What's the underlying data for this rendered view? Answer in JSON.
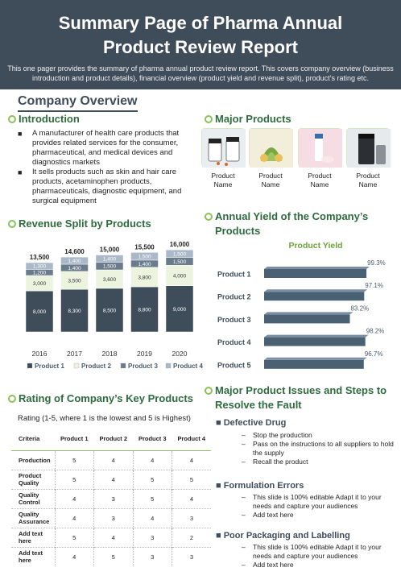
{
  "header": {
    "title_line1": "Summary Page of Pharma Annual",
    "title_line2": "Product Review Report",
    "description": "This one pager provides the summary of pharma annual product review report. This covers company overview (business introduction and product details), financial overview (product yield and revenue split), product’s rating etc."
  },
  "company_overview": {
    "heading": "Company Overview",
    "intro_heading": "Introduction",
    "bullets": [
      "A manufacturer of health care products that provides related services for the consumer, pharmaceutical, and medical devices and diagnostics markets",
      "It sells products such as skin and hair care products, acetaminophen products, pharmaceuticals, diagnostic equipment, and surgical equipment"
    ]
  },
  "major_products": {
    "heading": "Major Products",
    "items": [
      {
        "label": "Product Name"
      },
      {
        "label": "Product Name"
      },
      {
        "label": "Product Name"
      },
      {
        "label": "Product Name"
      }
    ]
  },
  "revenue_split": {
    "heading": "Revenue Split by Products"
  },
  "annual_yield": {
    "heading_line1": "Annual Yield of the Company’s",
    "heading_line2": "Products"
  },
  "chart_data": [
    {
      "type": "bar",
      "stacked": true,
      "categories": [
        "2016",
        "2017",
        "2018",
        "2019",
        "2020"
      ],
      "totals": [
        "13,500",
        "14,600",
        "15,000",
        "15,500",
        "16,000"
      ],
      "series": [
        {
          "name": "Product 1",
          "values": [
            8000,
            8300,
            8500,
            8800,
            9000
          ],
          "labels": [
            "8,000",
            "8,300",
            "8,500",
            "8,800",
            "9,000"
          ],
          "color": "#3f4c5a"
        },
        {
          "name": "Product 2",
          "values": [
            3000,
            3500,
            3600,
            3800,
            4000
          ],
          "labels": [
            "3,000",
            "3,500",
            "3,600",
            "3,800",
            "4,000"
          ],
          "color": "#ecf4e0"
        },
        {
          "name": "Product 3",
          "values": [
            1200,
            1400,
            1500,
            1400,
            1500
          ],
          "labels": [
            "1,200",
            "1,400",
            "1,500",
            "1,400",
            "1,500"
          ],
          "color": "#6a7b8c"
        },
        {
          "name": "Product 4",
          "values": [
            1300,
            1400,
            1400,
            1500,
            1500
          ],
          "labels": [
            "1,300",
            "1,400",
            "1,400",
            "1,500",
            "1,500"
          ],
          "color": "#aab8c8"
        }
      ],
      "legend_position": "bottom"
    },
    {
      "type": "bar",
      "orientation": "horizontal",
      "title": "Product Yield",
      "categories": [
        "Product 1",
        "Product 2",
        "Product 3",
        "Product 4",
        "Product 5"
      ],
      "values": [
        99.3,
        97.1,
        83.2,
        98.2,
        96.7
      ],
      "labels": [
        "99.3%",
        "97.1%",
        "83.2%",
        "98.2%",
        "96.7%"
      ],
      "xlim": [
        0,
        100
      ],
      "color": "#4a6073"
    }
  ],
  "rating": {
    "heading": "Rating of Company’s Key Products",
    "caption": "Rating (1-5, where 1 is the lowest and 5 is Highest)",
    "columns": [
      "Criteria",
      "Product 1",
      "Product 2",
      "Product 3",
      "Product 4"
    ],
    "rows": [
      {
        "criteria": "Production",
        "values": [
          "5",
          "4",
          "4",
          "4"
        ]
      },
      {
        "criteria": "Product Quality",
        "values": [
          "5",
          "4",
          "5",
          "5"
        ]
      },
      {
        "criteria": "Quality Control",
        "values": [
          "4",
          "3",
          "5",
          "4"
        ]
      },
      {
        "criteria": "Quality Assurance",
        "values": [
          "4",
          "3",
          "4",
          "3"
        ]
      },
      {
        "criteria": "Add text here",
        "values": [
          "5",
          "4",
          "3",
          "2"
        ]
      },
      {
        "criteria": "Add text here",
        "values": [
          "4",
          "5",
          "3",
          "3"
        ]
      }
    ]
  },
  "issues": {
    "heading_line1": "Major Product Issues and Steps to",
    "heading_line2": "Resolve the Fault",
    "items": [
      {
        "title": "Defective Drug",
        "points": [
          "Stop the production",
          "Pass on the instructions to all suppliers to hold the supply",
          "Recall the product"
        ]
      },
      {
        "title": "Formulation Errors",
        "points": [
          "This slide is 100% editable Adapt it to your needs and capture your audiences",
          "Add text here"
        ]
      },
      {
        "title": "Poor Packaging and Labelling",
        "points": [
          "This slide is 100% editable Adapt it to your needs and capture your audiences",
          "Add text here"
        ]
      }
    ]
  }
}
